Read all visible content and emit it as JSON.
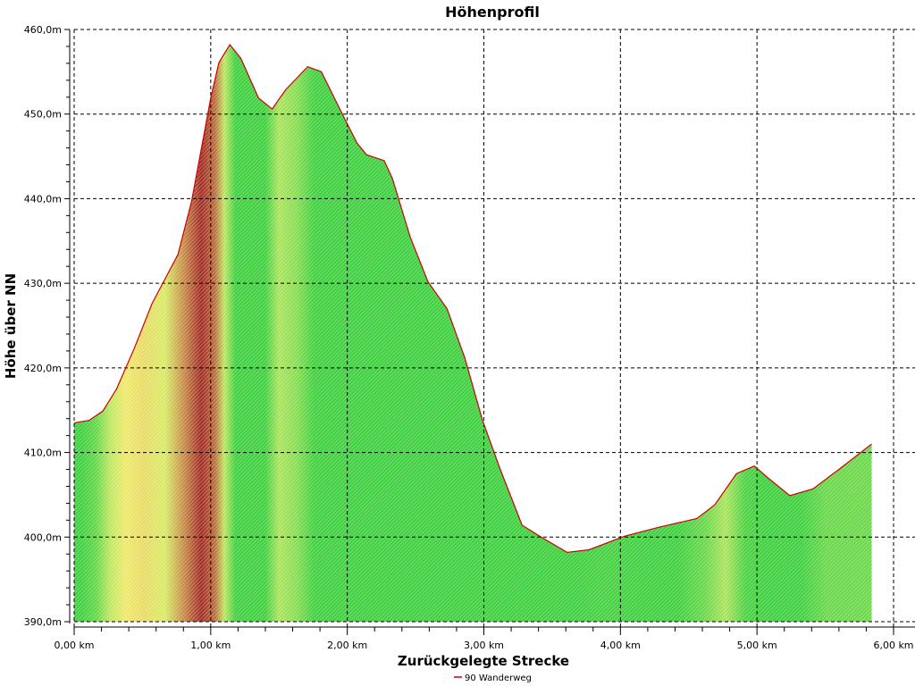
{
  "chart_data": {
    "type": "area",
    "title": "Höhenprofil",
    "xlabel": "Zurückgelegte Strecke",
    "ylabel": "Höhe über NN",
    "xlim": [
      0,
      6
    ],
    "ylim": [
      390,
      460
    ],
    "x_ticks": [
      0,
      1,
      2,
      3,
      4,
      5,
      6
    ],
    "x_tick_labels": [
      "0,00 km",
      "1,00 km",
      "2,00 km",
      "3,00 km",
      "4,00 km",
      "5,00 km",
      "6,00 km"
    ],
    "y_ticks": [
      390,
      400,
      410,
      420,
      430,
      440,
      450,
      460
    ],
    "y_tick_labels": [
      "390,0m",
      "400,0m",
      "410,0m",
      "420,0m",
      "430,0m",
      "440,0m",
      "450,0m",
      "460,0m"
    ],
    "grid": true,
    "legend_position": "bottom",
    "series": [
      {
        "name": "90 Wanderweg",
        "line_color": "#cc0000",
        "x": [
          0,
          0.11,
          0.21,
          0.31,
          0.44,
          0.57,
          0.76,
          0.86,
          1.0,
          1.06,
          1.14,
          1.22,
          1.35,
          1.45,
          1.55,
          1.71,
          1.81,
          1.97,
          2.07,
          2.14,
          2.27,
          2.33,
          2.46,
          2.59,
          2.73,
          2.86,
          2.99,
          3.12,
          3.28,
          3.41,
          3.61,
          3.77,
          4.03,
          4.29,
          4.56,
          4.69,
          4.85,
          4.98,
          5.08,
          5.24,
          5.41,
          5.6,
          5.84
        ],
        "y": [
          413.5,
          413.8,
          414.9,
          417.5,
          422.3,
          427.6,
          433.4,
          439.7,
          451.9,
          456.1,
          458.2,
          456.6,
          451.9,
          450.6,
          452.9,
          455.6,
          455.0,
          449.8,
          446.6,
          445.2,
          444.5,
          442.4,
          435.5,
          430.2,
          427.0,
          421.2,
          413.8,
          408.0,
          401.4,
          400.1,
          398.2,
          398.5,
          400.1,
          401.2,
          402.2,
          403.8,
          407.5,
          408.4,
          407.0,
          404.9,
          405.7,
          408.0,
          411.0
        ]
      }
    ],
    "fill_colors": {
      "flat": "#3ccf3c",
      "moderate": "#f2f06a",
      "steep": "#9a1c1c"
    }
  }
}
